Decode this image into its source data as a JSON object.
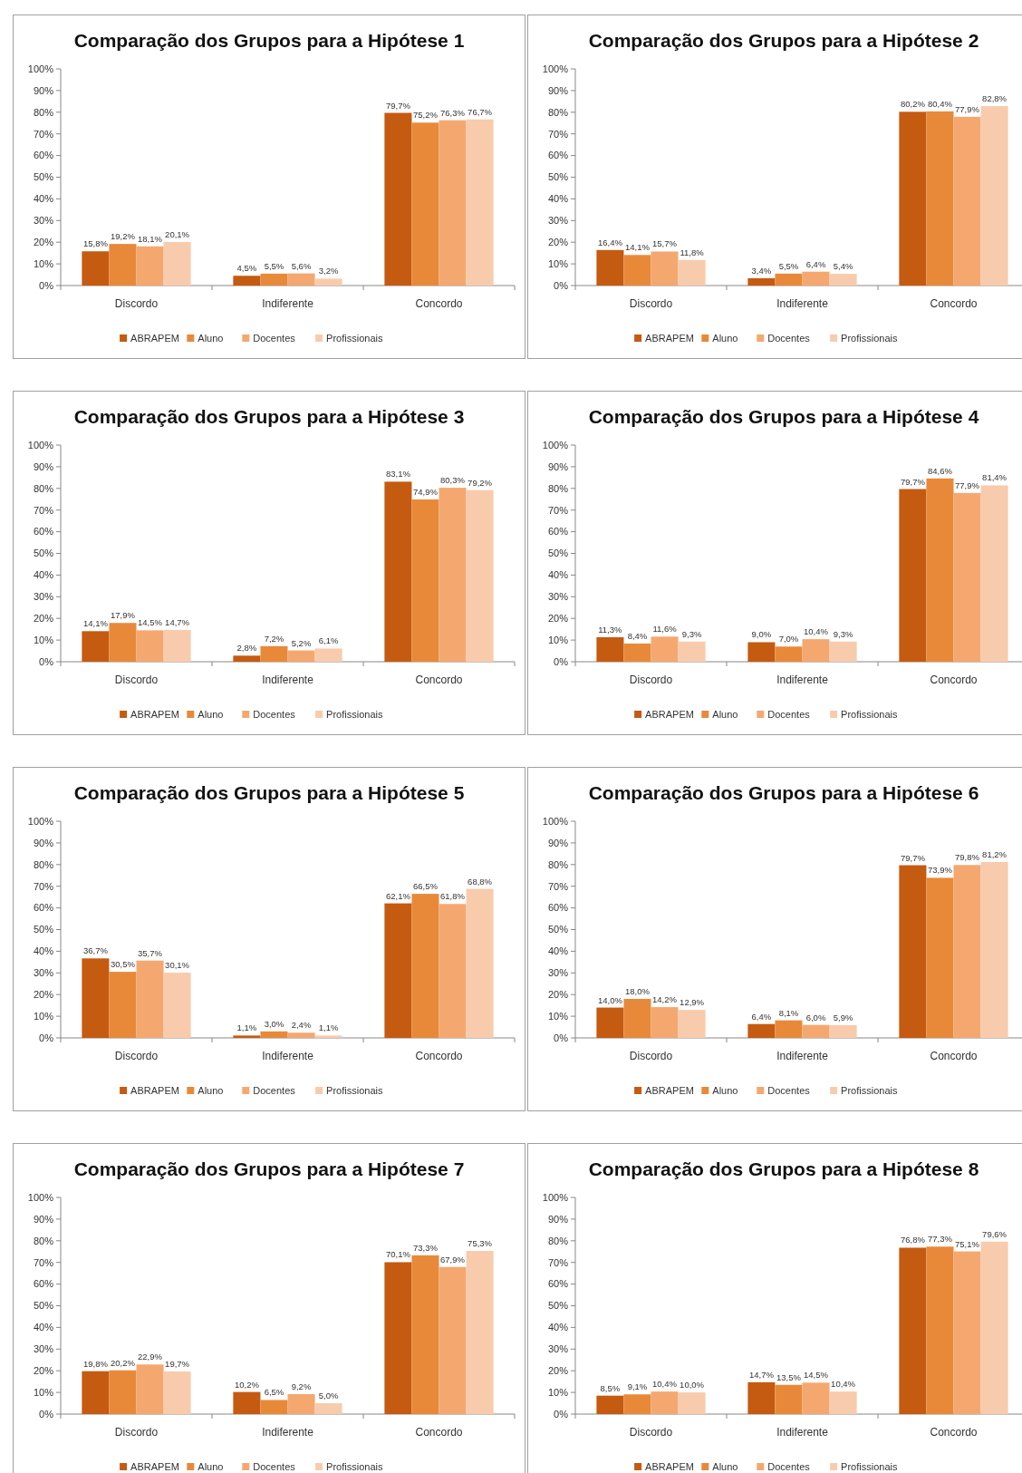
{
  "chart_data": [
    {
      "type": "bar",
      "title": "Comparação dos Grupos para a Hipótese 1",
      "categories": [
        "Discordo",
        "Indiferente",
        "Concordo"
      ],
      "ylim": [
        0,
        100
      ],
      "yticks": [
        {
          "value": 0,
          "label": "0%"
        },
        {
          "value": 10,
          "label": "10%"
        },
        {
          "value": 20,
          "label": "20%"
        },
        {
          "value": 30,
          "label": "30%"
        },
        {
          "value": 40,
          "label": "40%"
        },
        {
          "value": 50,
          "label": "50%"
        },
        {
          "value": 60,
          "label": "60%"
        },
        {
          "value": 70,
          "label": "70%"
        },
        {
          "value": 80,
          "label": "80%"
        },
        {
          "value": 90,
          "label": "90%"
        },
        {
          "value": 100,
          "label": "100%"
        }
      ],
      "legend": "bottom",
      "series": [
        {
          "name": "ABRAPEM",
          "color": "#c55a11",
          "values": [
            15.8,
            4.5,
            79.7
          ],
          "value_labels": [
            "15,8%",
            "4,5%",
            "79,7%"
          ]
        },
        {
          "name": "Aluno",
          "color": "#e8893a",
          "values": [
            19.2,
            5.5,
            75.2
          ],
          "value_labels": [
            "19,2%",
            "5,5%",
            "75,2%"
          ]
        },
        {
          "name": "Docentes",
          "color": "#f4a870",
          "values": [
            18.1,
            5.6,
            76.3
          ],
          "value_labels": [
            "18,1%",
            "5,6%",
            "76,3%"
          ]
        },
        {
          "name": "Profissionais",
          "color": "#f8cbad",
          "values": [
            20.1,
            3.2,
            76.7
          ],
          "value_labels": [
            "20,1%",
            "3,2%",
            "76,7%"
          ]
        }
      ]
    },
    {
      "type": "bar",
      "title": "Comparação dos Grupos para a Hipótese 2",
      "categories": [
        "Discordo",
        "Indiferente",
        "Concordo"
      ],
      "ylim": [
        0,
        100
      ],
      "yticks": [
        {
          "value": 0,
          "label": "0%"
        },
        {
          "value": 10,
          "label": "10%"
        },
        {
          "value": 20,
          "label": "20%"
        },
        {
          "value": 30,
          "label": "30%"
        },
        {
          "value": 40,
          "label": "40%"
        },
        {
          "value": 50,
          "label": "50%"
        },
        {
          "value": 60,
          "label": "60%"
        },
        {
          "value": 70,
          "label": "70%"
        },
        {
          "value": 80,
          "label": "80%"
        },
        {
          "value": 90,
          "label": "90%"
        },
        {
          "value": 100,
          "label": "100%"
        }
      ],
      "legend": "bottom",
      "series": [
        {
          "name": "ABRAPEM",
          "color": "#c55a11",
          "values": [
            16.4,
            3.4,
            80.2
          ],
          "value_labels": [
            "16,4%",
            "3,4%",
            "80,2%"
          ]
        },
        {
          "name": "Aluno",
          "color": "#e8893a",
          "values": [
            14.1,
            5.5,
            80.4
          ],
          "value_labels": [
            "14,1%",
            "5,5%",
            "80,4%"
          ]
        },
        {
          "name": "Docentes",
          "color": "#f4a870",
          "values": [
            15.7,
            6.4,
            77.9
          ],
          "value_labels": [
            "15,7%",
            "6,4%",
            "77,9%"
          ]
        },
        {
          "name": "Profissionais",
          "color": "#f8cbad",
          "values": [
            11.8,
            5.4,
            82.8
          ],
          "value_labels": [
            "11,8%",
            "5,4%",
            "82,8%"
          ]
        }
      ]
    },
    {
      "type": "bar",
      "title": "Comparação dos Grupos para a Hipótese 3",
      "categories": [
        "Discordo",
        "Indiferente",
        "Concordo"
      ],
      "ylim": [
        0,
        100
      ],
      "yticks": [
        {
          "value": 0,
          "label": "0%"
        },
        {
          "value": 10,
          "label": "10%"
        },
        {
          "value": 20,
          "label": "20%"
        },
        {
          "value": 30,
          "label": "30%"
        },
        {
          "value": 40,
          "label": "40%"
        },
        {
          "value": 50,
          "label": "50%"
        },
        {
          "value": 60,
          "label": "60%"
        },
        {
          "value": 70,
          "label": "70%"
        },
        {
          "value": 80,
          "label": "80%"
        },
        {
          "value": 90,
          "label": "90%"
        },
        {
          "value": 100,
          "label": "100%"
        }
      ],
      "legend": "bottom",
      "series": [
        {
          "name": "ABRAPEM",
          "color": "#c55a11",
          "values": [
            14.1,
            2.8,
            83.1
          ],
          "value_labels": [
            "14,1%",
            "2,8%",
            "83,1%"
          ]
        },
        {
          "name": "Aluno",
          "color": "#e8893a",
          "values": [
            17.9,
            7.2,
            74.9
          ],
          "value_labels": [
            "17,9%",
            "7,2%",
            "74,9%"
          ]
        },
        {
          "name": "Docentes",
          "color": "#f4a870",
          "values": [
            14.5,
            5.2,
            80.3
          ],
          "value_labels": [
            "14,5%",
            "5,2%",
            "80,3%"
          ]
        },
        {
          "name": "Profissionais",
          "color": "#f8cbad",
          "values": [
            14.7,
            6.1,
            79.2
          ],
          "value_labels": [
            "14,7%",
            "6,1%",
            "79,2%"
          ]
        }
      ]
    },
    {
      "type": "bar",
      "title": "Comparação dos Grupos para a Hipótese 4",
      "categories": [
        "Discordo",
        "Indiferente",
        "Concordo"
      ],
      "ylim": [
        0,
        100
      ],
      "yticks": [
        {
          "value": 0,
          "label": "0%"
        },
        {
          "value": 10,
          "label": "10%"
        },
        {
          "value": 20,
          "label": "20%"
        },
        {
          "value": 30,
          "label": "30%"
        },
        {
          "value": 40,
          "label": "40%"
        },
        {
          "value": 50,
          "label": "50%"
        },
        {
          "value": 60,
          "label": "60%"
        },
        {
          "value": 70,
          "label": "70%"
        },
        {
          "value": 80,
          "label": "80%"
        },
        {
          "value": 90,
          "label": "90%"
        },
        {
          "value": 100,
          "label": "100%"
        }
      ],
      "legend": "bottom",
      "series": [
        {
          "name": "ABRAPEM",
          "color": "#c55a11",
          "values": [
            11.3,
            9.0,
            79.7
          ],
          "value_labels": [
            "11,3%",
            "9,0%",
            "79,7%"
          ]
        },
        {
          "name": "Aluno",
          "color": "#e8893a",
          "values": [
            8.4,
            7.0,
            84.6
          ],
          "value_labels": [
            "8,4%",
            "7,0%",
            "84,6%"
          ]
        },
        {
          "name": "Docentes",
          "color": "#f4a870",
          "values": [
            11.6,
            10.4,
            77.9
          ],
          "value_labels": [
            "11,6%",
            "10,4%",
            "77,9%"
          ]
        },
        {
          "name": "Profissionais",
          "color": "#f8cbad",
          "values": [
            9.3,
            9.3,
            81.4
          ],
          "value_labels": [
            "9,3%",
            "9,3%",
            "81,4%"
          ]
        }
      ]
    },
    {
      "type": "bar",
      "title": "Comparação dos Grupos para a Hipótese 5",
      "categories": [
        "Discordo",
        "Indiferente",
        "Concordo"
      ],
      "ylim": [
        0,
        100
      ],
      "yticks": [
        {
          "value": 0,
          "label": "0%"
        },
        {
          "value": 10,
          "label": "10%"
        },
        {
          "value": 20,
          "label": "20%"
        },
        {
          "value": 30,
          "label": "30%"
        },
        {
          "value": 40,
          "label": "40%"
        },
        {
          "value": 50,
          "label": "50%"
        },
        {
          "value": 60,
          "label": "60%"
        },
        {
          "value": 70,
          "label": "70%"
        },
        {
          "value": 80,
          "label": "80%"
        },
        {
          "value": 90,
          "label": "90%"
        },
        {
          "value": 100,
          "label": "100%"
        }
      ],
      "legend": "bottom",
      "series": [
        {
          "name": "ABRAPEM",
          "color": "#c55a11",
          "values": [
            36.7,
            1.1,
            62.1
          ],
          "value_labels": [
            "36,7%",
            "1,1%",
            "62,1%"
          ]
        },
        {
          "name": "Aluno",
          "color": "#e8893a",
          "values": [
            30.5,
            3.0,
            66.5
          ],
          "value_labels": [
            "30,5%",
            "3,0%",
            "66,5%"
          ]
        },
        {
          "name": "Docentes",
          "color": "#f4a870",
          "values": [
            35.7,
            2.4,
            61.8
          ],
          "value_labels": [
            "35,7%",
            "2,4%",
            "61,8%"
          ]
        },
        {
          "name": "Profissionais",
          "color": "#f8cbad",
          "values": [
            30.1,
            1.1,
            68.8
          ],
          "value_labels": [
            "30,1%",
            "1,1%",
            "68,8%"
          ]
        }
      ]
    },
    {
      "type": "bar",
      "title": "Comparação dos Grupos para a Hipótese 6",
      "categories": [
        "Discordo",
        "Indiferente",
        "Concordo"
      ],
      "ylim": [
        0,
        100
      ],
      "yticks": [
        {
          "value": 0,
          "label": "0%"
        },
        {
          "value": 10,
          "label": "10%"
        },
        {
          "value": 20,
          "label": "20%"
        },
        {
          "value": 30,
          "label": "30%"
        },
        {
          "value": 40,
          "label": "40%"
        },
        {
          "value": 50,
          "label": "50%"
        },
        {
          "value": 60,
          "label": "60%"
        },
        {
          "value": 70,
          "label": "70%"
        },
        {
          "value": 80,
          "label": "80%"
        },
        {
          "value": 90,
          "label": "90%"
        },
        {
          "value": 100,
          "label": "100%"
        }
      ],
      "legend": "bottom",
      "series": [
        {
          "name": "ABRAPEM",
          "color": "#c55a11",
          "values": [
            14.0,
            6.4,
            79.7
          ],
          "value_labels": [
            "14,0%",
            "6,4%",
            "79,7%"
          ]
        },
        {
          "name": "Aluno",
          "color": "#e8893a",
          "values": [
            18.0,
            8.1,
            73.9
          ],
          "value_labels": [
            "18,0%",
            "8,1%",
            "73,9%"
          ]
        },
        {
          "name": "Docentes",
          "color": "#f4a870",
          "values": [
            14.2,
            6.0,
            79.8
          ],
          "value_labels": [
            "14,2%",
            "6,0%",
            "79,8%"
          ]
        },
        {
          "name": "Profissionais",
          "color": "#f8cbad",
          "values": [
            12.9,
            5.9,
            81.2
          ],
          "value_labels": [
            "12,9%",
            "5,9%",
            "81,2%"
          ]
        }
      ]
    },
    {
      "type": "bar",
      "title": "Comparação dos Grupos para a Hipótese 7",
      "categories": [
        "Discordo",
        "Indiferente",
        "Concordo"
      ],
      "ylim": [
        0,
        100
      ],
      "yticks": [
        {
          "value": 0,
          "label": "0%"
        },
        {
          "value": 10,
          "label": "10%"
        },
        {
          "value": 20,
          "label": "20%"
        },
        {
          "value": 30,
          "label": "30%"
        },
        {
          "value": 40,
          "label": "40%"
        },
        {
          "value": 50,
          "label": "50%"
        },
        {
          "value": 60,
          "label": "60%"
        },
        {
          "value": 70,
          "label": "70%"
        },
        {
          "value": 80,
          "label": "80%"
        },
        {
          "value": 90,
          "label": "90%"
        },
        {
          "value": 100,
          "label": "100%"
        }
      ],
      "legend": "bottom",
      "series": [
        {
          "name": "ABRAPEM",
          "color": "#c55a11",
          "values": [
            19.8,
            10.2,
            70.1
          ],
          "value_labels": [
            "19,8%",
            "10,2%",
            "70,1%"
          ]
        },
        {
          "name": "Aluno",
          "color": "#e8893a",
          "values": [
            20.2,
            6.5,
            73.3
          ],
          "value_labels": [
            "20,2%",
            "6,5%",
            "73,3%"
          ]
        },
        {
          "name": "Docentes",
          "color": "#f4a870",
          "values": [
            22.9,
            9.2,
            67.9
          ],
          "value_labels": [
            "22,9%",
            "9,2%",
            "67,9%"
          ]
        },
        {
          "name": "Profissionais",
          "color": "#f8cbad",
          "values": [
            19.7,
            5.0,
            75.3
          ],
          "value_labels": [
            "19,7%",
            "5,0%",
            "75,3%"
          ]
        }
      ]
    },
    {
      "type": "bar",
      "title": "Comparação dos Grupos para a Hipótese 8",
      "categories": [
        "Discordo",
        "Indiferente",
        "Concordo"
      ],
      "ylim": [
        0,
        100
      ],
      "yticks": [
        {
          "value": 0,
          "label": "0%"
        },
        {
          "value": 10,
          "label": "10%"
        },
        {
          "value": 20,
          "label": "20%"
        },
        {
          "value": 30,
          "label": "30%"
        },
        {
          "value": 40,
          "label": "40%"
        },
        {
          "value": 50,
          "label": "50%"
        },
        {
          "value": 60,
          "label": "60%"
        },
        {
          "value": 70,
          "label": "70%"
        },
        {
          "value": 80,
          "label": "80%"
        },
        {
          "value": 90,
          "label": "90%"
        },
        {
          "value": 100,
          "label": "100%"
        }
      ],
      "legend": "bottom",
      "series": [
        {
          "name": "ABRAPEM",
          "color": "#c55a11",
          "values": [
            8.5,
            14.7,
            76.8
          ],
          "value_labels": [
            "8,5%",
            "14,7%",
            "76,8%"
          ]
        },
        {
          "name": "Aluno",
          "color": "#e8893a",
          "values": [
            9.1,
            13.5,
            77.3
          ],
          "value_labels": [
            "9,1%",
            "13,5%",
            "77,3%"
          ]
        },
        {
          "name": "Docentes",
          "color": "#f4a870",
          "values": [
            10.4,
            14.5,
            75.1
          ],
          "value_labels": [
            "10,4%",
            "14,5%",
            "75,1%"
          ]
        },
        {
          "name": "Profissionais",
          "color": "#f8cbad",
          "values": [
            10.0,
            10.4,
            79.6
          ],
          "value_labels": [
            "10,0%",
            "10,4%",
            "79,6%"
          ]
        }
      ]
    }
  ]
}
